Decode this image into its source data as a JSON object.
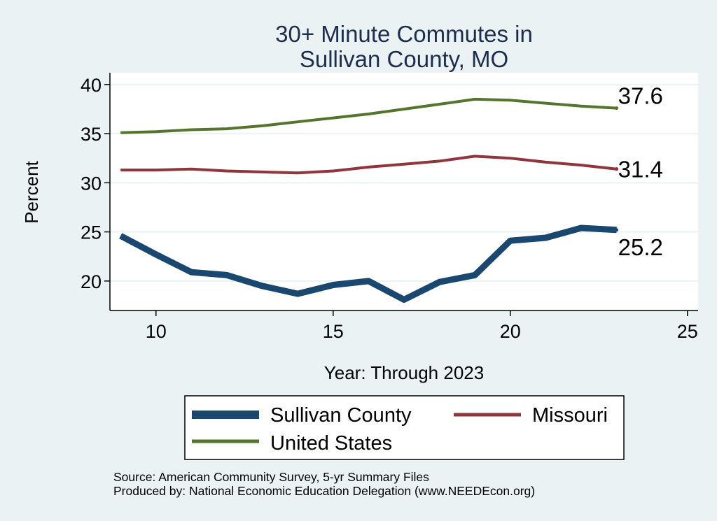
{
  "chart_data": {
    "type": "line",
    "title": [
      "30+ Minute Commutes in",
      "Sullivan County, MO"
    ],
    "xlabel": "Year: Through 2023",
    "ylabel": "Percent",
    "xlim": [
      8.7,
      25.3
    ],
    "ylim": [
      17.0,
      41.2
    ],
    "x_ticks": [
      10,
      15,
      20,
      25
    ],
    "y_ticks": [
      20,
      25,
      30,
      35,
      40
    ],
    "grid": "horizontal",
    "x": [
      9,
      10,
      11,
      12,
      13,
      14,
      15,
      16,
      17,
      18,
      19,
      20,
      21,
      22,
      23
    ],
    "series": [
      {
        "name": "Sullivan County",
        "color": "#1a476f",
        "values": [
          24.6,
          22.7,
          20.9,
          20.6,
          19.5,
          18.7,
          19.6,
          20.0,
          18.1,
          19.9,
          20.6,
          24.1,
          24.4,
          25.4,
          25.2
        ],
        "end_label": "25.2"
      },
      {
        "name": "Missouri",
        "color": "#90353b",
        "values": [
          31.3,
          31.3,
          31.4,
          31.2,
          31.1,
          31.0,
          31.2,
          31.6,
          31.9,
          32.2,
          32.7,
          32.5,
          32.1,
          31.8,
          31.4
        ],
        "end_label": "31.4"
      },
      {
        "name": "United States",
        "color": "#55752f",
        "values": [
          35.1,
          35.2,
          35.4,
          35.5,
          35.8,
          36.2,
          36.6,
          37.0,
          37.5,
          38.0,
          38.5,
          38.4,
          38.1,
          37.8,
          37.6
        ],
        "end_label": "37.6"
      }
    ],
    "legend": {
      "position": "bottom",
      "entries": [
        "Sullivan County",
        "Missouri",
        "United States"
      ]
    },
    "notes": [
      "Source: American Community Survey, 5-yr Summary Files",
      "Produced by: National Economic Education Delegation (www.NEEDEcon.org)"
    ]
  }
}
